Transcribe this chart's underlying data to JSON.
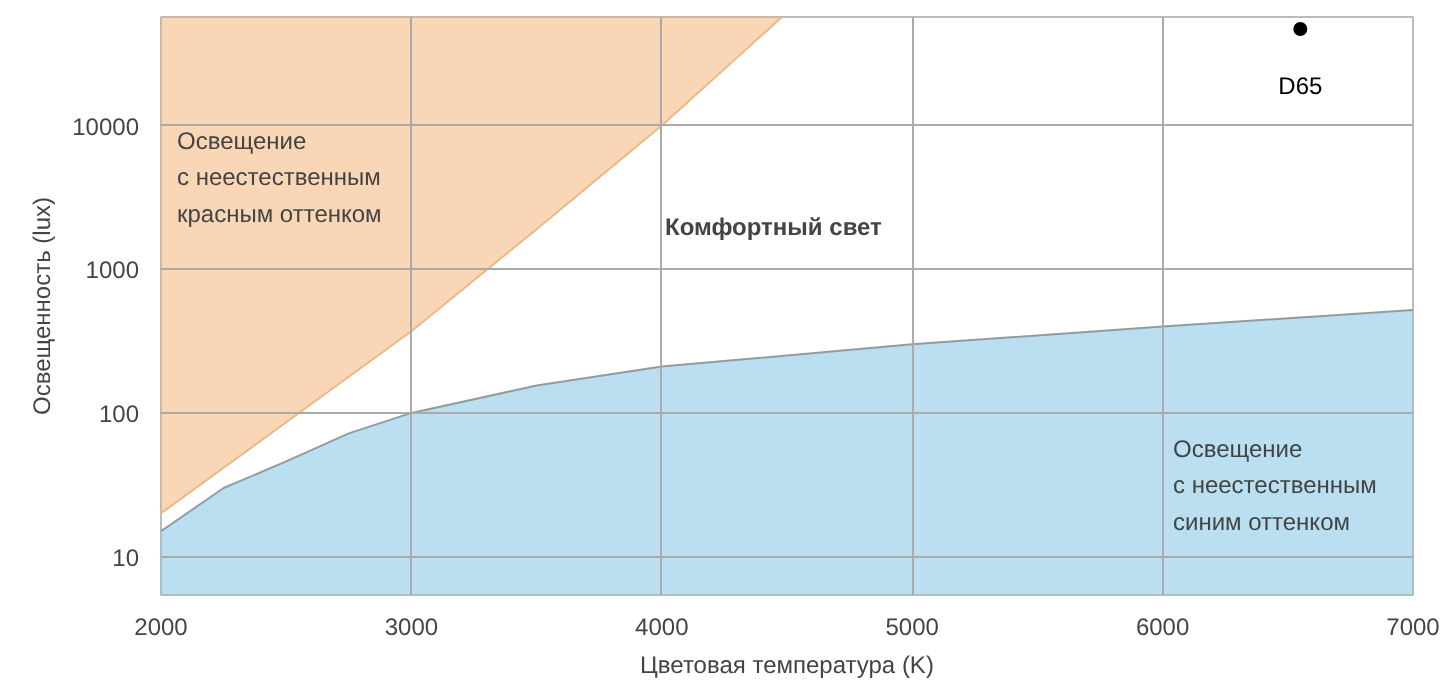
{
  "chart_data": {
    "type": "line",
    "xlabel": "Цветовая температура (K)",
    "ylabel": "Освещенность (lux)",
    "xlim": [
      2000,
      7000
    ],
    "xticks": [
      2000,
      3000,
      4000,
      5000,
      6000,
      7000
    ],
    "ylim": [
      5.4,
      57000
    ],
    "yticks": [
      10,
      100,
      1000,
      10000
    ],
    "log": "y",
    "grid": true,
    "series": [
      {
        "color": "#f4b67a",
        "x": [
          2000,
          2500,
          3000,
          3500,
          4000,
          4480
        ],
        "values": [
          20,
          86,
          370,
          1900,
          10000,
          57000
        ],
        "lower": [
          20,
          86,
          370,
          1900,
          10000,
          57000
        ],
        "upper": [
          57000,
          57000,
          57000,
          57000,
          57000,
          57000
        ]
      },
      {
        "type": "area",
        "color": "#7fc4e4",
        "x": [
          2000,
          2250,
          2500,
          2750,
          3000,
          3500,
          4000,
          5000,
          6000,
          7000
        ],
        "values": [
          15,
          30,
          46,
          72,
          100,
          155,
          210,
          300,
          400,
          520
        ]
      },
      {
        "type": "scatter",
        "name": "D65",
        "color": "#000000",
        "x": [
          6550
        ],
        "values": [
          47000
        ]
      }
    ],
    "annotations": [
      "Освещение\nс неестественным\nкрасным оттенком",
      "Комфортный свет",
      "Освещение\nс неестественным\nсиним оттенком"
    ]
  }
}
